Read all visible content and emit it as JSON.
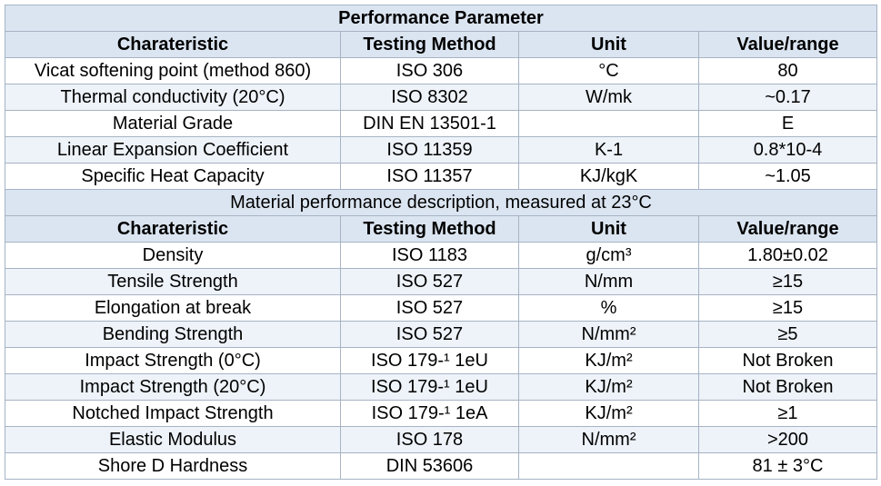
{
  "title": "Performance Parameter",
  "headers": [
    "Charateristic",
    "Testing Method",
    "Unit",
    "Value/range"
  ],
  "section1_rows": [
    [
      "Vicat softening point (method 860)",
      "ISO 306",
      "°C",
      "80"
    ],
    [
      "Thermal conductivity (20°C)",
      "ISO 8302",
      "W/mk",
      "~0.17"
    ],
    [
      "Material Grade",
      "DIN EN 13501-1",
      "",
      "E"
    ],
    [
      "Linear Expansion Coefficient",
      "ISO 11359",
      "K-1",
      "0.8*10-4"
    ],
    [
      "Specific Heat Capacity",
      "ISO 11357",
      "KJ/kgK",
      "~1.05"
    ]
  ],
  "section2_title": "Material performance description, measured at 23°C",
  "section2_rows": [
    [
      "Density",
      "ISO 1183",
      "g/cm³",
      "1.80±0.02"
    ],
    [
      "Tensile Strength",
      "ISO 527",
      "N/mm",
      "≥15"
    ],
    [
      "Elongation at break",
      "ISO 527",
      "%",
      "≥15"
    ],
    [
      "Bending Strength",
      "ISO 527",
      "N/mm²",
      "≥5"
    ],
    [
      "Impact Strength (0°C)",
      "ISO 179-¹ 1eU",
      "KJ/m²",
      "Not Broken"
    ],
    [
      "Impact Strength (20°C)",
      "ISO 179-¹ 1eU",
      "KJ/m²",
      "Not Broken"
    ],
    [
      "Notched Impact Strength",
      "ISO 179-¹ 1eA",
      "KJ/m²",
      "≥1"
    ],
    [
      "Elastic Modulus",
      "ISO 178",
      "N/mm²",
      ">200"
    ],
    [
      "Shore D Hardness",
      "DIN 53606",
      "",
      "81 ± 3°C"
    ]
  ]
}
